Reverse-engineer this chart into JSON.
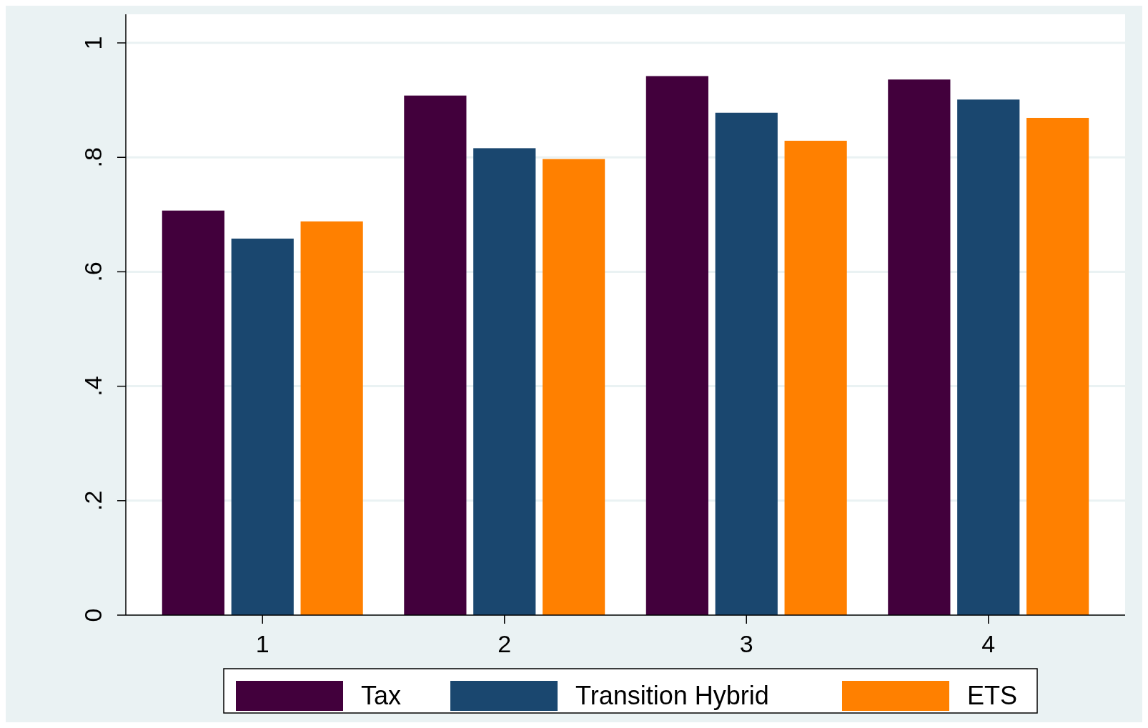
{
  "chart_data": {
    "type": "bar",
    "categories": [
      "1",
      "2",
      "3",
      "4"
    ],
    "series": [
      {
        "name": "Tax",
        "color": "#42003c",
        "values": [
          0.707,
          0.908,
          0.942,
          0.936
        ]
      },
      {
        "name": "Transition Hybrid",
        "color": "#1a476f",
        "values": [
          0.658,
          0.816,
          0.878,
          0.901
        ]
      },
      {
        "name": "ETS",
        "color": "#ff8000",
        "values": [
          0.688,
          0.797,
          0.829,
          0.869
        ]
      }
    ],
    "ylim": [
      0,
      1.05
    ],
    "yticks": [
      {
        "value": 0,
        "label": "0"
      },
      {
        "value": 0.2,
        "label": ".2"
      },
      {
        "value": 0.4,
        "label": ".4"
      },
      {
        "value": 0.6,
        "label": ".6"
      },
      {
        "value": 0.8,
        "label": ".8"
      },
      {
        "value": 1,
        "label": "1"
      }
    ],
    "grid": "y",
    "legend": "bottom"
  }
}
